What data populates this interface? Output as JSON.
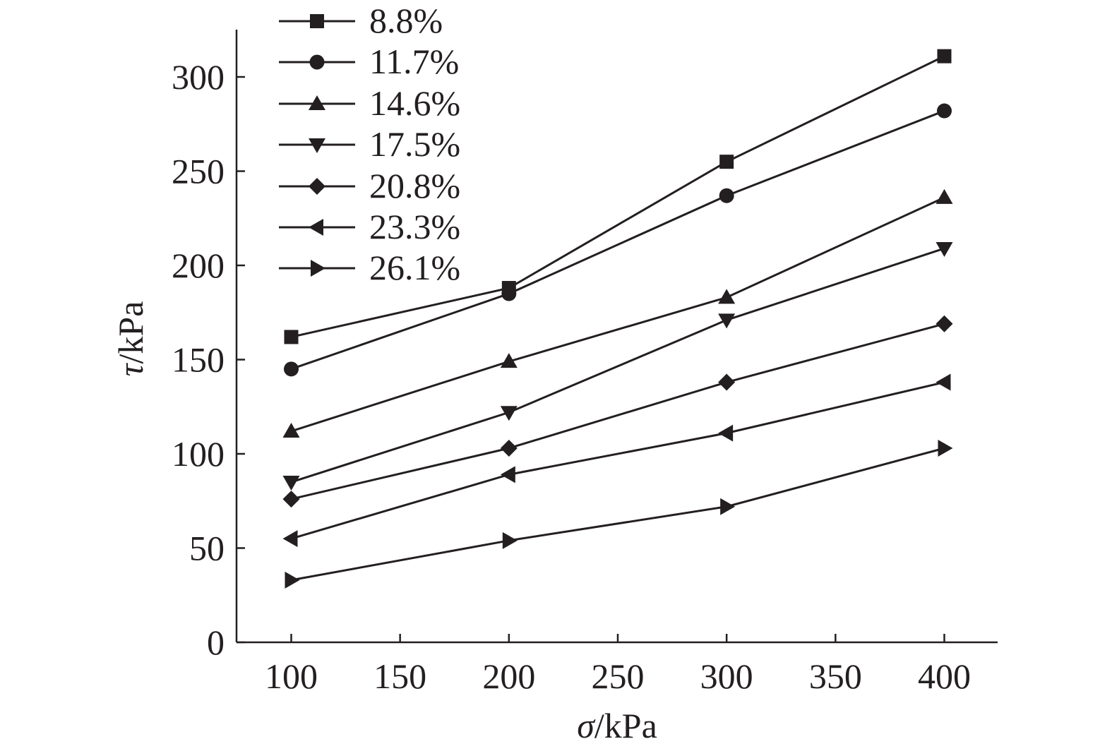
{
  "chart_data": {
    "type": "line",
    "x": [
      100,
      200,
      300,
      400
    ],
    "xlabel_symbol": "σ",
    "xlabel_unit": "/kPa",
    "ylabel_symbol": "τ",
    "ylabel_unit": "/kPa",
    "xlim": [
      75,
      425
    ],
    "ylim": [
      0,
      325
    ],
    "xticks": [
      100,
      150,
      200,
      250,
      300,
      350,
      400
    ],
    "yticks": [
      0,
      50,
      100,
      150,
      200,
      250,
      300
    ],
    "grid": false,
    "legend_position": "top-left",
    "series": [
      {
        "name": "8.8%",
        "marker": "square",
        "values": [
          162,
          188,
          255,
          311
        ]
      },
      {
        "name": "11.7%",
        "marker": "circle",
        "values": [
          145,
          185,
          237,
          282
        ]
      },
      {
        "name": "14.6%",
        "marker": "triangle-up",
        "values": [
          112,
          149,
          183,
          236
        ]
      },
      {
        "name": "17.5%",
        "marker": "triangle-down",
        "values": [
          85,
          122,
          171,
          209
        ]
      },
      {
        "name": "20.8%",
        "marker": "diamond",
        "values": [
          76,
          103,
          138,
          169
        ]
      },
      {
        "name": "23.3%",
        "marker": "triangle-left",
        "values": [
          55,
          89,
          111,
          138
        ]
      },
      {
        "name": "26.1%",
        "marker": "triangle-right",
        "values": [
          33,
          54,
          72,
          103
        ]
      }
    ],
    "colors": {
      "ink": "#231f20",
      "background": "#ffffff"
    }
  }
}
